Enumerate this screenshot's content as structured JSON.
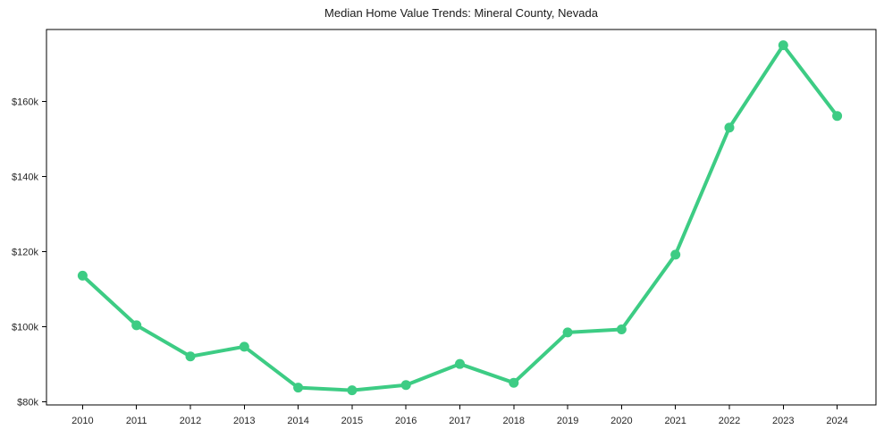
{
  "page": {
    "background": "#ffffff"
  },
  "chart_data": {
    "type": "line",
    "title": "Median Home Value Trends: Mineral County, Nevada",
    "xlabel": "",
    "ylabel": "",
    "x": [
      2010,
      2011,
      2012,
      2013,
      2014,
      2015,
      2016,
      2017,
      2018,
      2019,
      2020,
      2021,
      2022,
      2023,
      2024
    ],
    "x_tick_labels": [
      "2010",
      "2011",
      "2012",
      "2013",
      "2014",
      "2015",
      "2016",
      "2017",
      "2018",
      "2019",
      "2020",
      "2021",
      "2022",
      "2023",
      "2024"
    ],
    "series": [
      {
        "name": "Median home value",
        "values": [
          113600,
          100400,
          92100,
          94700,
          83800,
          83100,
          84500,
          90100,
          85100,
          98500,
          99300,
          119200,
          153000,
          174900,
          156100
        ],
        "color": "#3dcc84"
      }
    ],
    "y_ticks": [
      80000,
      100000,
      120000,
      140000,
      160000
    ],
    "y_tick_labels": [
      "$80k",
      "$100k",
      "$120k",
      "$140k",
      "$160k"
    ],
    "ylim": [
      79200,
      179100
    ],
    "xlim": [
      2009.33,
      2024.72
    ],
    "grid": false,
    "legend": "none",
    "marker": "circle",
    "line_width": 4,
    "marker_radius": 5.5,
    "axis_color": "#000000",
    "tick_label_color": "#262626",
    "title_color": "#1a1a1a"
  }
}
